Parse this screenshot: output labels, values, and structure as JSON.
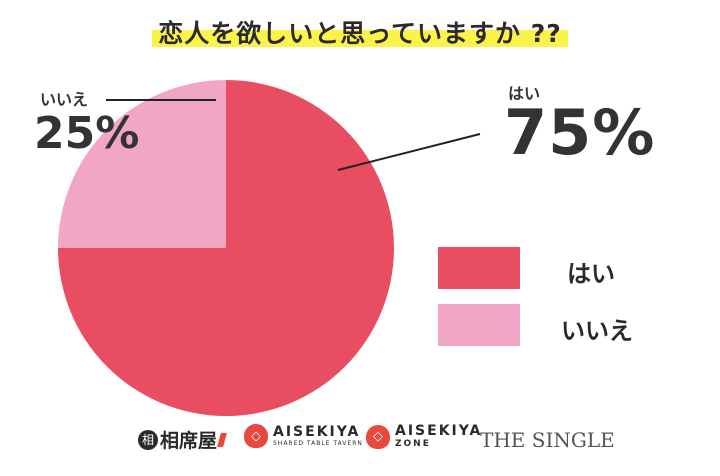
{
  "title": "恋人を欲しいと思っていますか ??",
  "chart_data": {
    "type": "pie",
    "title": "恋人を欲しいと思っていますか ??",
    "slices": [
      {
        "label": "はい",
        "value": 75,
        "value_text": "75%",
        "color": "#e84d62"
      },
      {
        "label": "いいえ",
        "value": 25,
        "value_text": "25%",
        "color": "#f2a6c6"
      }
    ],
    "legend": {
      "placement": "right",
      "items": [
        {
          "label": "はい",
          "color": "#e84d62"
        },
        {
          "label": "いいえ",
          "color": "#f2a6c6"
        }
      ]
    }
  },
  "footer": {
    "logo1": {
      "mark": "相",
      "text": "相席屋"
    },
    "logo2": {
      "icon": "aisekiya-shield-icon",
      "main": "AISEKIYA",
      "sub": "SHARED TABLE TAVERN"
    },
    "logo3": {
      "icon": "aisekiya-shield-icon",
      "main": "AISEKIYA",
      "sub": "ZONE"
    },
    "logo4": {
      "text": "THE SINGLE"
    }
  }
}
